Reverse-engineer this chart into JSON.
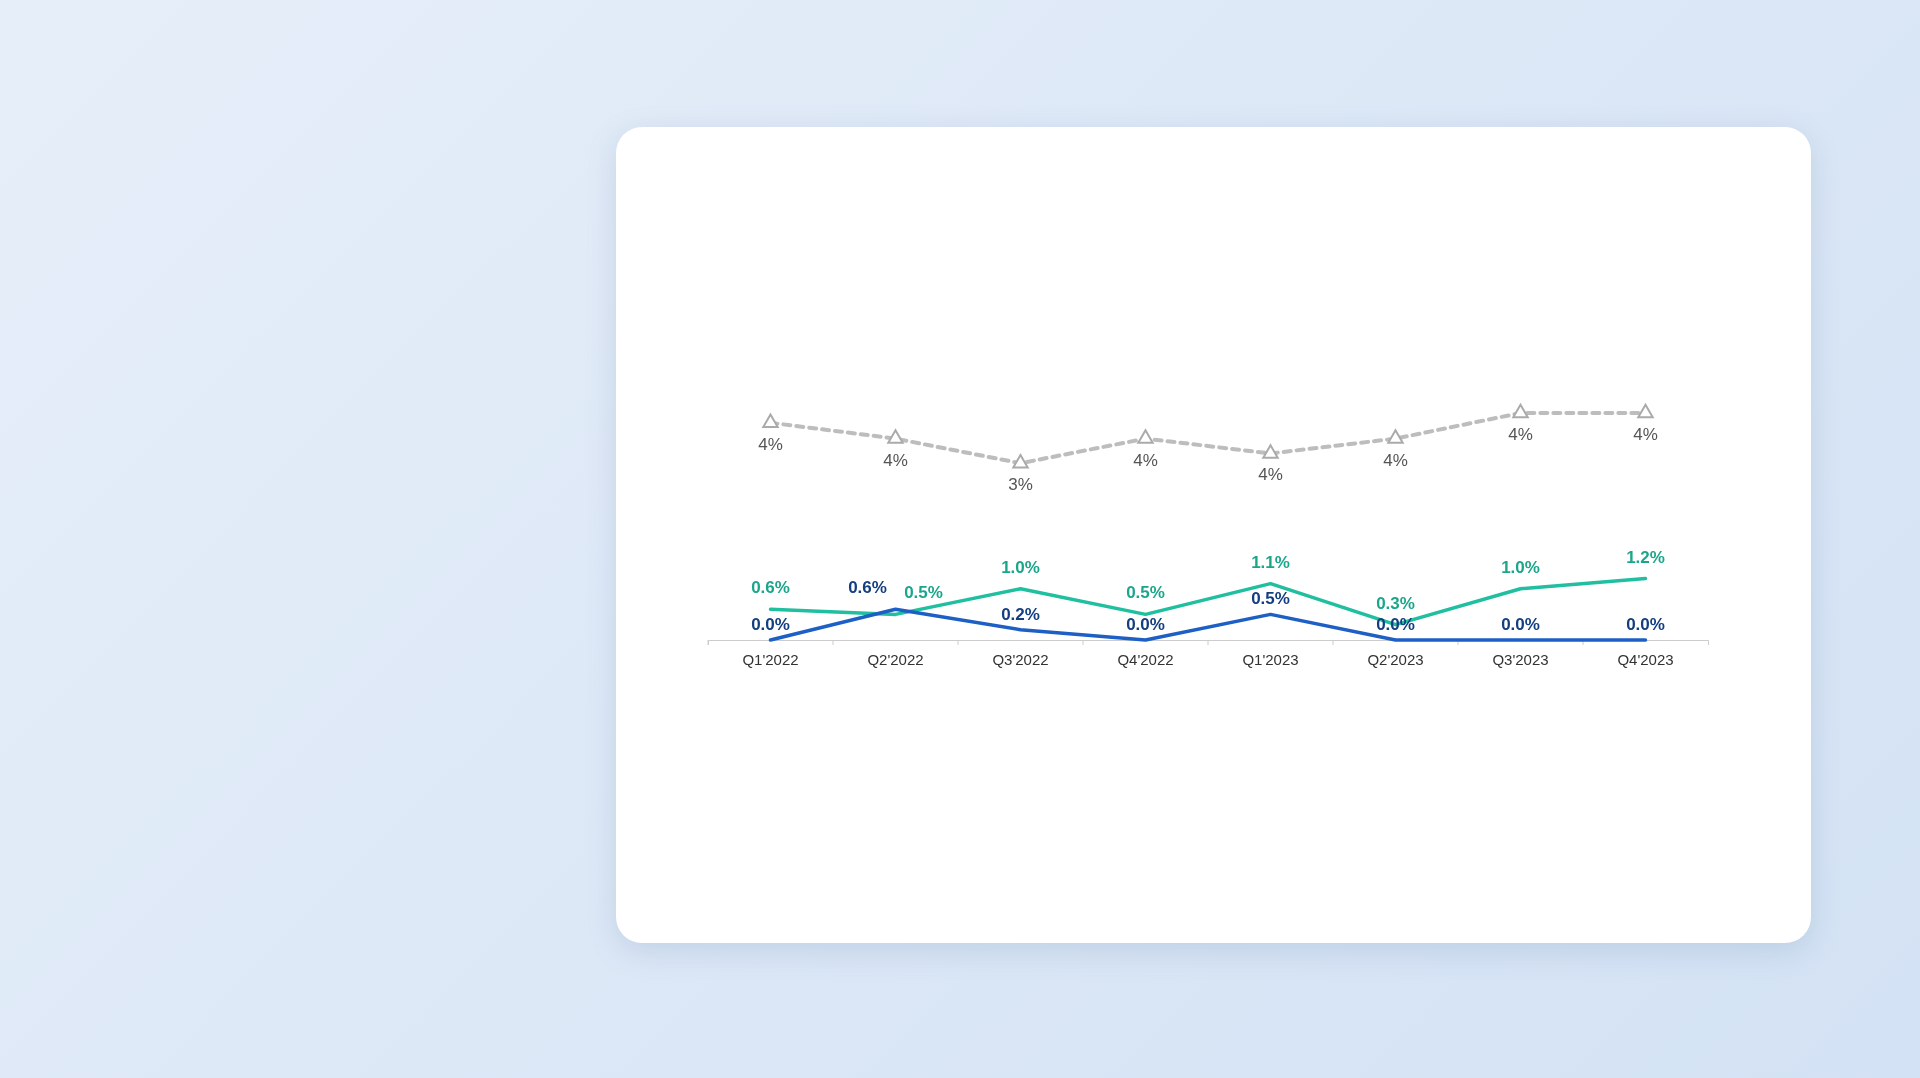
{
  "chart_data": {
    "type": "line",
    "categories": [
      "Q1'2022",
      "Q2'2022",
      "Q3'2022",
      "Q4'2022",
      "Q1'2023",
      "Q2'2023",
      "Q3'2023",
      "Q4'2023"
    ],
    "tick_labels": "x",
    "grid": false,
    "series": [
      {
        "color": "#bdbdbd",
        "line_style": "dashed",
        "marker": "triangle",
        "values": [
          4.24,
          3.93,
          3.45,
          3.93,
          3.64,
          3.93,
          4.43,
          4.43
        ],
        "value_labels": [
          "4%",
          "4%",
          "3%",
          "4%",
          "4%",
          "4%",
          "4%",
          "4%"
        ]
      },
      {
        "color": "#1fbfa0",
        "line_style": "solid",
        "marker": "none",
        "values": [
          0.6,
          0.5,
          1.0,
          0.5,
          1.1,
          0.3,
          1.0,
          1.2
        ],
        "value_labels": [
          "0.6%",
          "0.5%",
          "1.0%",
          "0.5%",
          "1.1%",
          "0.3%",
          "1.0%",
          "1.2%"
        ]
      },
      {
        "color": "#1d5fc4",
        "line_style": "solid",
        "marker": "none",
        "values": [
          0.0,
          0.6,
          0.2,
          0.0,
          0.5,
          0.0,
          0.0,
          0.0
        ],
        "value_labels": [
          "0.0%",
          "0.6%",
          "0.2%",
          "0.0%",
          "0.5%",
          "0.0%",
          "0.0%",
          "0.0%"
        ]
      }
    ]
  }
}
